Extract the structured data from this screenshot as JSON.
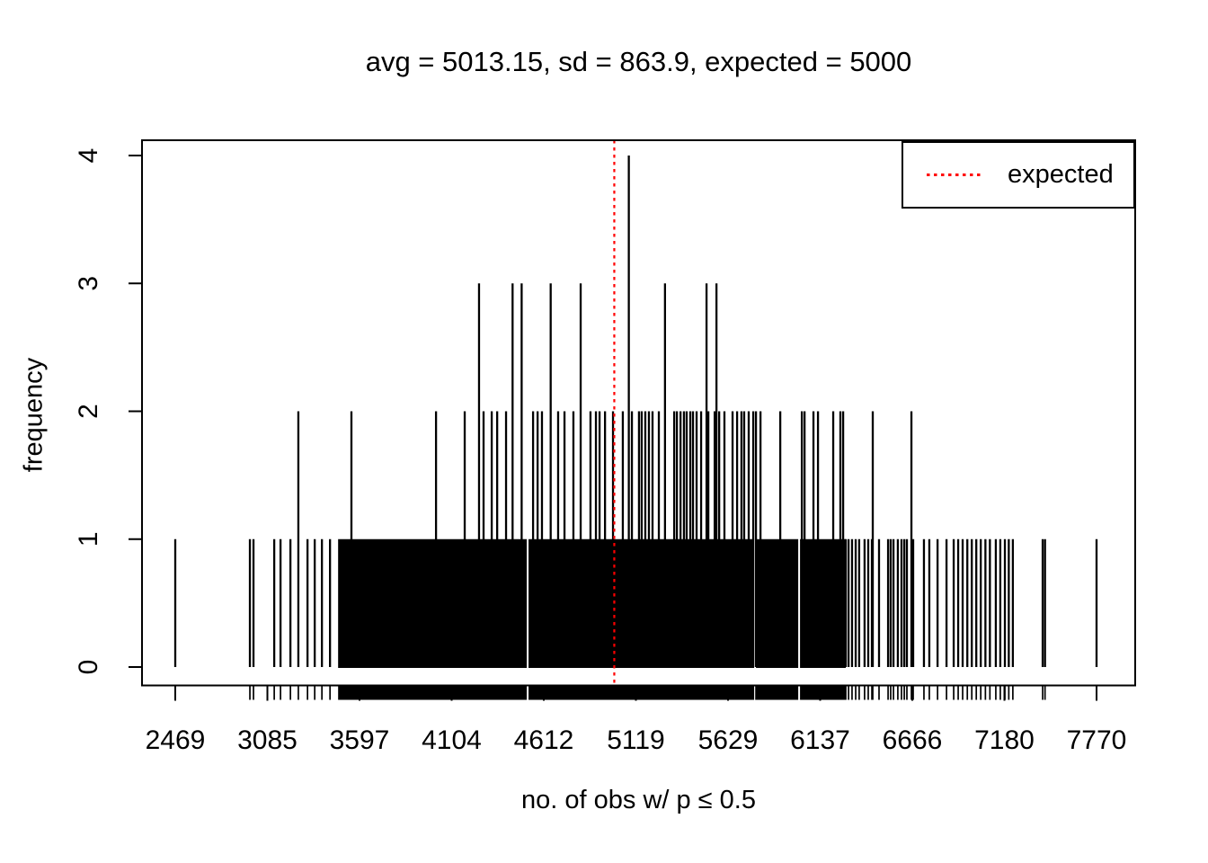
{
  "chart_data": {
    "type": "line",
    "subtype": "vertical-spike-frequency-plot",
    "title": "avg = 5013.15, sd = 863.9, expected = 5000",
    "xlabel": "no. of obs w/ p ≤ 0.5",
    "ylabel": "frequency",
    "x_tick_values": [
      2469,
      3085,
      3597,
      4104,
      4612,
      5119,
      5629,
      6137,
      6666,
      7180,
      7770
    ],
    "y_tick_values": [
      0,
      1,
      2,
      3,
      4
    ],
    "ylim": [
      0,
      4
    ],
    "grid": false,
    "stats": {
      "avg": 5013.15,
      "sd": 863.9,
      "expected": 5000
    },
    "expected_vline": {
      "value": 5000,
      "color": "#ff0000",
      "style": "dotted"
    },
    "legend": {
      "position": "top-right",
      "entries": [
        {
          "label": "expected",
          "color": "#ff0000",
          "style": "dotted"
        }
      ]
    },
    "spikes_height_4": [
      5080
    ],
    "spikes_height_3": [
      4255,
      4440,
      4490,
      4650,
      4815,
      5280,
      5510,
      5565
    ],
    "spikes_height_2": [
      3257,
      3552,
      4018,
      4176,
      4280,
      4325,
      4355,
      4404,
      4553,
      4578,
      4602,
      4691,
      4726,
      4775,
      4869,
      4899,
      4919,
      4949,
      4993,
      5047,
      5097,
      5136,
      5151,
      5171,
      5191,
      5211,
      5246,
      5331,
      5346,
      5366,
      5385,
      5400,
      5420,
      5435,
      5455,
      5480,
      5520,
      5555,
      5580,
      5609,
      5654,
      5679,
      5703,
      5718,
      5743,
      5768,
      5783,
      5808,
      5917,
      6036,
      6051,
      6100,
      6125,
      6212,
      6253,
      6269,
      6439,
      6661
    ],
    "spikes_height_1_sparse": [
      2469,
      2968,
      2992,
      3123,
      3158,
      3213,
      3308,
      3348,
      3388,
      3433,
      6284,
      6300,
      6320,
      6341,
      6361,
      6392,
      6413,
      6434,
      6475,
      6527,
      6542,
      6558,
      6583,
      6604,
      6620,
      6635,
      6671,
      6731,
      6761,
      6807,
      6857,
      6897,
      6922,
      6947,
      6973,
      6998,
      7023,
      7048,
      7074,
      7099,
      7132,
      7157,
      7183,
      7208,
      7234,
      7425,
      7440,
      7770
    ],
    "dense_height_1_band": {
      "from": 3483,
      "to": 6279,
      "gap_values": [
        4523,
        5778,
        6021
      ]
    },
    "rug": true,
    "colors": {
      "spikes": "#000000",
      "expected_line": "#ff0000",
      "axis": "#000000"
    }
  }
}
